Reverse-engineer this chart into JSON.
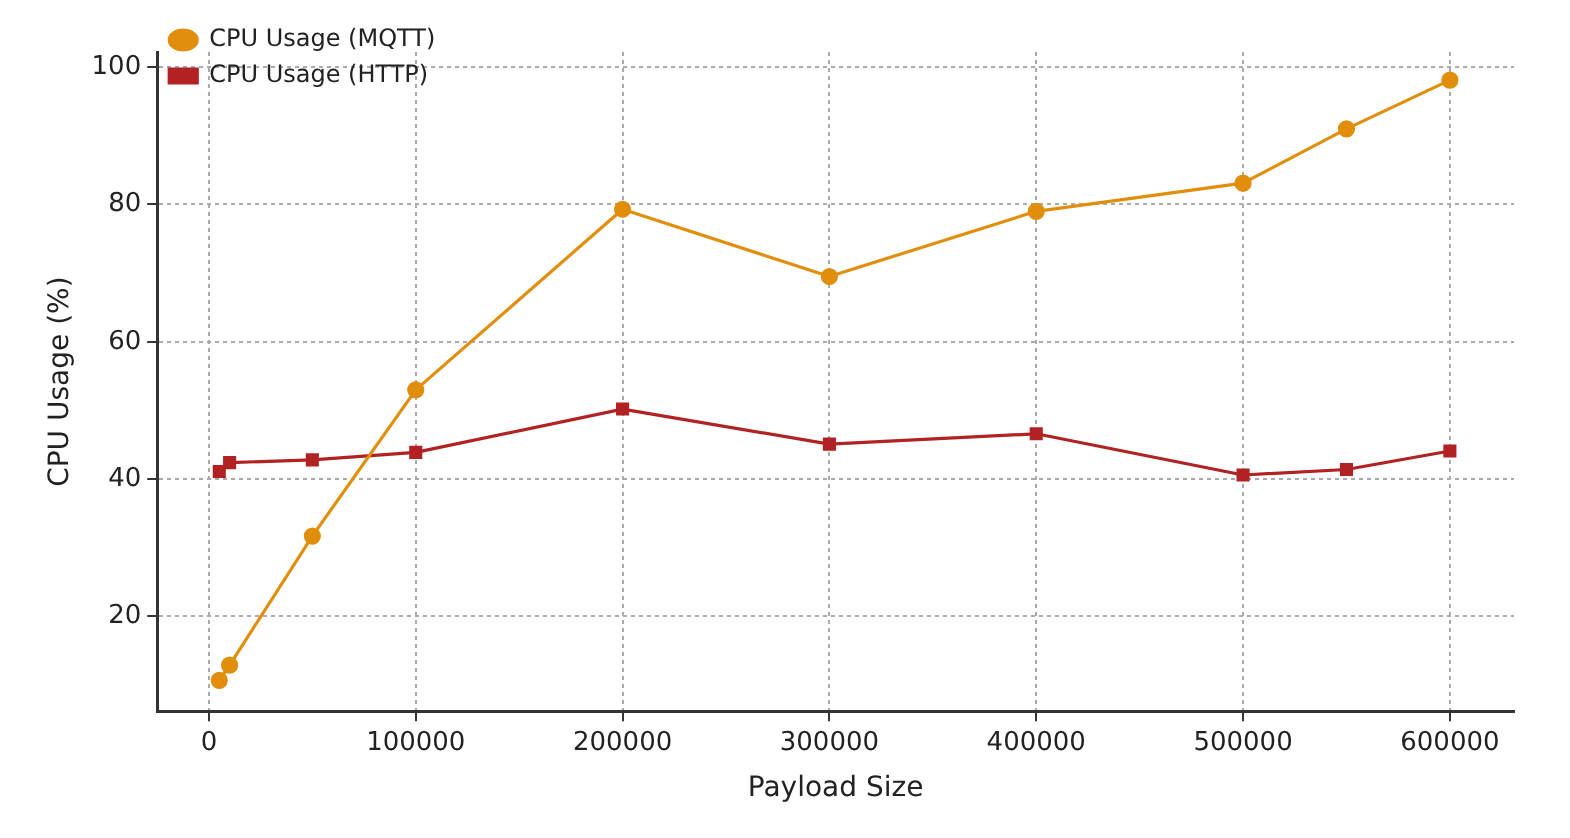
{
  "chart_data": {
    "type": "line",
    "xlabel": "Payload Size",
    "ylabel": "CPU Usage (%)",
    "x": [
      5000,
      10000,
      50000,
      100000,
      200000,
      300000,
      400000,
      500000,
      550000,
      600000
    ],
    "series": [
      {
        "name": "CPU Usage (MQTT)",
        "color": "#e08e0b",
        "marker": "circle",
        "values": [
          10.7,
          12.9,
          31.7,
          53,
          79.3,
          69.5,
          79,
          83.1,
          91,
          98.1
        ]
      },
      {
        "name": "CPU Usage (HTTP)",
        "color": "#b22222",
        "marker": "square",
        "values": [
          41.1,
          42.4,
          42.8,
          43.9,
          50.2,
          45.1,
          46.6,
          40.6,
          41.4,
          44.1
        ]
      }
    ],
    "xlim": [
      -25000,
      631000
    ],
    "xticks": [
      0,
      100000,
      200000,
      300000,
      400000,
      500000,
      600000
    ],
    "ylim": [
      6.2,
      102.2
    ],
    "yticks": [
      20,
      40,
      60,
      80,
      100
    ],
    "grid": true,
    "legend": "top left",
    "line_style": "solid"
  }
}
